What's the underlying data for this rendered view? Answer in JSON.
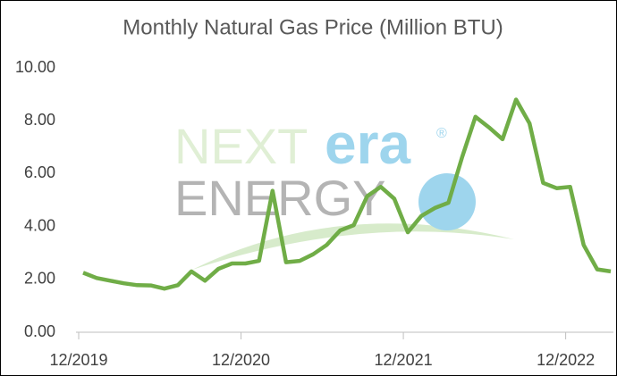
{
  "chart_data": {
    "type": "line",
    "title": "Monthly Natural Gas Price (Million BTU)",
    "watermark": {
      "word1": "NEXT",
      "word2": "era",
      "mark": "®",
      "word3": "ENERGY"
    },
    "categories": [
      "12/2019",
      null,
      null,
      null,
      null,
      null,
      null,
      null,
      null,
      null,
      null,
      null,
      "12/2020",
      null,
      null,
      null,
      null,
      null,
      null,
      null,
      null,
      null,
      null,
      null,
      "12/2021",
      null,
      null,
      null,
      null,
      null,
      null,
      null,
      null,
      null,
      null,
      null,
      "12/2022",
      null,
      null,
      null
    ],
    "series": [
      {
        "name": "Natural Gas Price",
        "color": "#70ad47",
        "values": [
          2.25,
          2.05,
          1.95,
          1.85,
          1.78,
          1.77,
          1.65,
          1.78,
          2.3,
          1.95,
          2.4,
          2.6,
          2.6,
          2.7,
          5.35,
          2.65,
          2.7,
          2.95,
          3.3,
          3.85,
          4.05,
          5.15,
          5.5,
          5.05,
          3.78,
          4.4,
          4.7,
          4.9,
          6.6,
          8.15,
          7.75,
          7.3,
          8.8,
          7.9,
          5.65,
          5.45,
          5.5,
          3.3,
          2.38,
          2.3
        ]
      }
    ],
    "ylim": [
      0,
      10
    ],
    "yticks": [
      {
        "value": 0,
        "label": "0.00"
      },
      {
        "value": 2,
        "label": "2.00"
      },
      {
        "value": 4,
        "label": "4.00"
      },
      {
        "value": 6,
        "label": "6.00"
      },
      {
        "value": 8,
        "label": "8.00"
      },
      {
        "value": 10,
        "label": "10.00"
      }
    ],
    "grid": false
  }
}
